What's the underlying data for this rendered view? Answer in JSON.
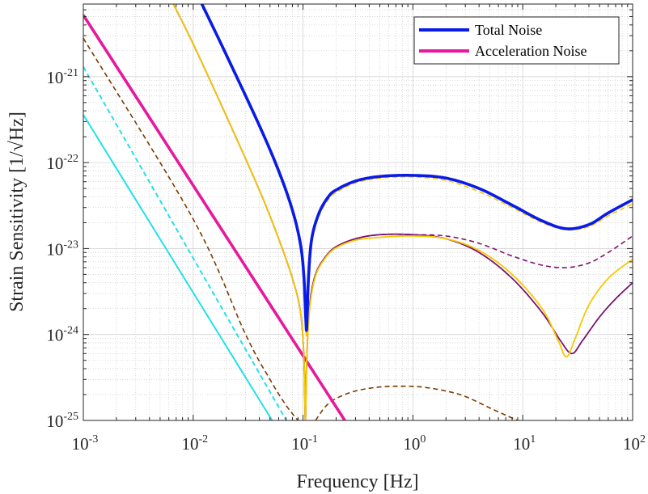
{
  "chart_data": {
    "type": "line",
    "xscale": "log",
    "yscale": "log",
    "xlim": [
      0.001,
      100
    ],
    "ylim": [
      1e-25,
      7e-21
    ],
    "xlabel": "Frequency [Hz]",
    "ylabel": "Strain Sensitivity [1/√Hz]",
    "ylabel_main": "Strain Sensitivity",
    "ylabel_unit_num": "1",
    "ylabel_unit_den": "Hz",
    "grid": true,
    "minor_grid": true,
    "legend_position": "top-right",
    "x_ticks": [
      {
        "value": 0.001,
        "base": "10",
        "exp": "-3"
      },
      {
        "value": 0.01,
        "base": "10",
        "exp": "-2"
      },
      {
        "value": 0.1,
        "base": "10",
        "exp": "-1"
      },
      {
        "value": 1,
        "base": "10",
        "exp": "0"
      },
      {
        "value": 10,
        "base": "10",
        "exp": "1"
      },
      {
        "value": 100,
        "base": "10",
        "exp": "2"
      }
    ],
    "y_ticks": [
      {
        "value": 1e-25,
        "base": "10",
        "exp": "-25"
      },
      {
        "value": 1e-24,
        "base": "10",
        "exp": "-24"
      },
      {
        "value": 1e-23,
        "base": "10",
        "exp": "-23"
      },
      {
        "value": 1e-22,
        "base": "10",
        "exp": "-22"
      },
      {
        "value": 1e-21,
        "base": "10",
        "exp": "-21"
      }
    ],
    "series": [
      {
        "name": "cyan-solid",
        "color": "#22e0e8",
        "style": "solid",
        "width": 2,
        "points": [
          [
            0.001,
            3.6e-22
          ],
          [
            0.0523,
            1e-25
          ]
        ]
      },
      {
        "name": "cyan-dashed",
        "color": "#22e0e8",
        "style": "dashed",
        "width": 2,
        "points": [
          [
            0.001,
            1.3e-21
          ],
          [
            0.0705,
            1e-25
          ]
        ]
      },
      {
        "name": "brown-dashed",
        "color": "#7a3d00",
        "style": "dashed",
        "width": 1.6,
        "points": [
          [
            0.001,
            2.8e-21
          ],
          [
            0.01,
            2.2e-23
          ],
          [
            0.03,
            1e-24
          ],
          [
            0.05,
            3e-25
          ],
          [
            0.07,
            1.5e-25
          ],
          [
            0.09,
            1e-25
          ]
        ]
      },
      {
        "name": "brown-dashed-hump",
        "color": "#7a3d00",
        "style": "dashed",
        "width": 1.6,
        "points": [
          [
            0.13,
            1e-25
          ],
          [
            0.16,
            1.45e-25
          ],
          [
            0.2,
            1.8e-25
          ],
          [
            0.3,
            2.2e-25
          ],
          [
            0.5,
            2.45e-25
          ],
          [
            0.8,
            2.5e-25
          ],
          [
            1.2,
            2.45e-25
          ],
          [
            2,
            2.2e-25
          ],
          [
            3,
            1.9e-25
          ],
          [
            5,
            1.4e-25
          ],
          [
            7,
            1.15e-25
          ],
          [
            9,
            1e-25
          ]
        ]
      },
      {
        "name": "Acceleration Noise",
        "legend": true,
        "color": "#e6199e",
        "style": "solid",
        "width": 3.6,
        "points": [
          [
            0.001,
            5.2e-21
          ],
          [
            0.24,
            1e-25
          ]
        ]
      },
      {
        "name": "purple-solid",
        "color": "#7b1470",
        "style": "solid",
        "width": 1.8,
        "points": [
          [
            0.0066,
            7e-21
          ],
          [
            0.01,
            2.4e-21
          ],
          [
            0.02,
            3.5e-22
          ],
          [
            0.04,
            4.8e-23
          ],
          [
            0.06,
            1.3e-23
          ],
          [
            0.08,
            4.5e-24
          ],
          [
            0.095,
            1.8e-24
          ],
          [
            0.102,
            5e-25
          ],
          [
            0.105,
            1e-25
          ],
          [
            0.108,
            5e-25
          ],
          [
            0.115,
            2.2e-24
          ],
          [
            0.13,
            5e-24
          ],
          [
            0.16,
            8e-24
          ],
          [
            0.2,
            1.05e-23
          ],
          [
            0.3,
            1.3e-23
          ],
          [
            0.5,
            1.45e-23
          ],
          [
            1,
            1.45e-23
          ],
          [
            2,
            1.3e-23
          ],
          [
            4,
            9e-24
          ],
          [
            8,
            4.5e-24
          ],
          [
            15,
            1.8e-24
          ],
          [
            22,
            8.5e-25
          ],
          [
            28,
            6e-25
          ],
          [
            35,
            8.5e-25
          ],
          [
            50,
            1.6e-24
          ],
          [
            70,
            2.6e-24
          ],
          [
            100,
            4e-24
          ]
        ]
      },
      {
        "name": "purple-dashed",
        "color": "#7b1470",
        "style": "dashed",
        "width": 1.6,
        "points": [
          [
            0.0066,
            7e-21
          ],
          [
            0.01,
            2.4e-21
          ],
          [
            0.02,
            3.5e-22
          ],
          [
            0.04,
            4.8e-23
          ],
          [
            0.06,
            1.3e-23
          ],
          [
            0.08,
            4.5e-24
          ],
          [
            0.095,
            1.8e-24
          ],
          [
            0.102,
            5e-25
          ],
          [
            0.105,
            1e-25
          ],
          [
            0.108,
            5e-25
          ],
          [
            0.115,
            2.2e-24
          ],
          [
            0.13,
            5e-24
          ],
          [
            0.16,
            8e-24
          ],
          [
            0.2,
            1.05e-23
          ],
          [
            0.3,
            1.3e-23
          ],
          [
            0.5,
            1.45e-23
          ],
          [
            1,
            1.45e-23
          ],
          [
            2,
            1.4e-23
          ],
          [
            4,
            1.15e-23
          ],
          [
            8,
            8.2e-24
          ],
          [
            15,
            6.4e-24
          ],
          [
            25,
            6e-24
          ],
          [
            40,
            6.8e-24
          ],
          [
            60,
            9e-24
          ],
          [
            100,
            1.4e-23
          ]
        ]
      },
      {
        "name": "yellow-solid",
        "color": "#f5c800",
        "style": "solid",
        "width": 1.8,
        "points": [
          [
            0.0066,
            7e-21
          ],
          [
            0.01,
            2.4e-21
          ],
          [
            0.02,
            3.5e-22
          ],
          [
            0.04,
            4.8e-23
          ],
          [
            0.06,
            1.3e-23
          ],
          [
            0.08,
            4.5e-24
          ],
          [
            0.095,
            1.8e-24
          ],
          [
            0.102,
            5e-25
          ],
          [
            0.105,
            1e-25
          ],
          [
            0.108,
            5e-25
          ],
          [
            0.115,
            2e-24
          ],
          [
            0.13,
            4.8e-24
          ],
          [
            0.16,
            7.8e-24
          ],
          [
            0.2,
            1.02e-23
          ],
          [
            0.3,
            1.25e-23
          ],
          [
            0.5,
            1.35e-23
          ],
          [
            1,
            1.4e-23
          ],
          [
            2,
            1.3e-23
          ],
          [
            4,
            9.5e-24
          ],
          [
            8,
            5e-24
          ],
          [
            15,
            2e-24
          ],
          [
            21,
            8.5e-25
          ],
          [
            25,
            5.5e-25
          ],
          [
            30,
            9e-25
          ],
          [
            40,
            2.2e-24
          ],
          [
            60,
            4.5e-24
          ],
          [
            100,
            7.5e-24
          ]
        ]
      },
      {
        "name": "yellow-dashed-upper",
        "color": "#f5c800",
        "style": "dashed",
        "width": 1.6,
        "points": [
          [
            0.012,
            7e-21
          ],
          [
            0.02,
            1.7e-21
          ],
          [
            0.04,
            2.6e-22
          ],
          [
            0.06,
            7.5e-23
          ],
          [
            0.08,
            2.6e-23
          ],
          [
            0.095,
            1e-23
          ],
          [
            0.102,
            4e-24
          ],
          [
            0.106,
            1.2e-24
          ],
          [
            0.108,
            1e-24
          ],
          [
            0.112,
            4e-24
          ],
          [
            0.12,
            1.2e-23
          ],
          [
            0.14,
            2.4e-23
          ],
          [
            0.17,
            3.7e-23
          ],
          [
            0.2,
            4.5e-23
          ],
          [
            0.3,
            5.8e-23
          ],
          [
            0.5,
            6.6e-23
          ],
          [
            1,
            6.8e-23
          ],
          [
            2,
            6.2e-23
          ],
          [
            4,
            4.6e-23
          ],
          [
            8,
            3e-23
          ],
          [
            15,
            2e-23
          ],
          [
            25,
            1.65e-23
          ],
          [
            40,
            1.8e-23
          ],
          [
            60,
            2.4e-23
          ],
          [
            100,
            3.3e-23
          ]
        ]
      },
      {
        "name": "Total Noise",
        "legend": true,
        "color": "#0a1be8",
        "style": "solid",
        "width": 3.6,
        "points": [
          [
            0.012,
            7e-21
          ],
          [
            0.02,
            1.8e-21
          ],
          [
            0.04,
            2.7e-22
          ],
          [
            0.06,
            8e-23
          ],
          [
            0.08,
            2.8e-23
          ],
          [
            0.095,
            1.1e-23
          ],
          [
            0.102,
            4.5e-24
          ],
          [
            0.106,
            1.5e-24
          ],
          [
            0.108,
            1.2e-24
          ],
          [
            0.112,
            4.5e-24
          ],
          [
            0.12,
            1.3e-23
          ],
          [
            0.14,
            2.6e-23
          ],
          [
            0.17,
            4e-23
          ],
          [
            0.2,
            4.8e-23
          ],
          [
            0.3,
            6.1e-23
          ],
          [
            0.5,
            6.9e-23
          ],
          [
            1,
            7.1e-23
          ],
          [
            2,
            6.6e-23
          ],
          [
            4,
            5e-23
          ],
          [
            8,
            3.2e-23
          ],
          [
            15,
            2.1e-23
          ],
          [
            25,
            1.7e-23
          ],
          [
            40,
            1.9e-23
          ],
          [
            60,
            2.6e-23
          ],
          [
            100,
            3.7e-23
          ]
        ]
      },
      {
        "name": "blue-dashed",
        "color": "#0a1be8",
        "style": "dashed",
        "width": 2,
        "points": [
          [
            0.012,
            7e-21
          ],
          [
            0.02,
            1.8e-21
          ],
          [
            0.04,
            2.7e-22
          ],
          [
            0.06,
            8e-23
          ],
          [
            0.08,
            2.8e-23
          ],
          [
            0.095,
            1.1e-23
          ],
          [
            0.102,
            4.5e-24
          ],
          [
            0.106,
            1.5e-24
          ],
          [
            0.108,
            1.2e-24
          ],
          [
            0.112,
            4.5e-24
          ],
          [
            0.12,
            1.3e-23
          ],
          [
            0.14,
            2.6e-23
          ],
          [
            0.17,
            4e-23
          ],
          [
            0.2,
            4.8e-23
          ],
          [
            0.3,
            6.1e-23
          ],
          [
            0.5,
            6.9e-23
          ],
          [
            1,
            7.1e-23
          ],
          [
            2,
            6.6e-23
          ],
          [
            4,
            5e-23
          ],
          [
            8,
            3.2e-23
          ],
          [
            15,
            2.1e-23
          ],
          [
            25,
            1.7e-23
          ],
          [
            40,
            1.9e-23
          ],
          [
            60,
            2.6e-23
          ],
          [
            100,
            3.7e-23
          ]
        ]
      }
    ],
    "legend": [
      {
        "label": "Total Noise",
        "color": "#0a1be8"
      },
      {
        "label": "Acceleration Noise",
        "color": "#e6199e"
      }
    ]
  }
}
